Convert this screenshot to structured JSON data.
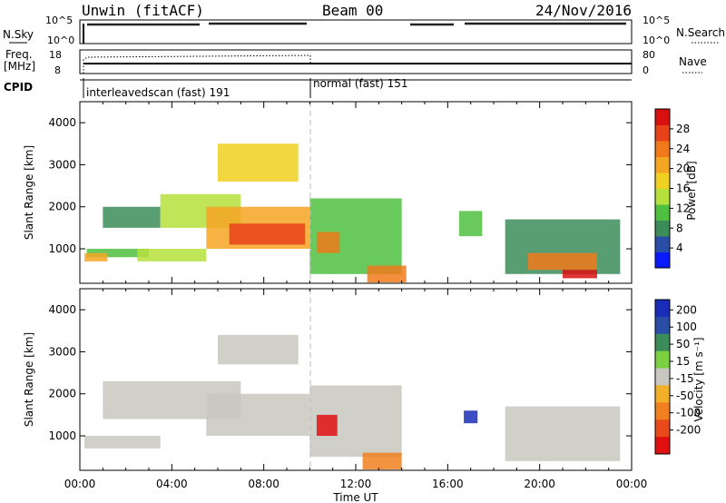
{
  "header": {
    "station": "Unwin (fitACF)",
    "beam": "Beam 00",
    "date": "24/Nov/2016"
  },
  "strip_nsky": {
    "left_label": "N.Sky",
    "right_label": "N.Search",
    "left_ticks": [
      "10^5",
      "10^0"
    ],
    "right_ticks": [
      "10^5",
      "10^0"
    ]
  },
  "strip_freq": {
    "left_label_1": "Freq.",
    "left_label_2": "[MHz]",
    "right_label": "Nave",
    "left_ticks": [
      "18",
      "8"
    ],
    "right_ticks": [
      "80",
      "0"
    ]
  },
  "strip_cpid": {
    "label": "CPID",
    "segment_1": "interleavedscan (fast) 191",
    "segment_2": "normal (fast) 151"
  },
  "axes": {
    "ylabel": "Slant Range [km]",
    "xlabel": "Time UT",
    "y_ticks": [
      "1000",
      "2000",
      "3000",
      "4000"
    ],
    "x_ticks": [
      "00:00",
      "04:00",
      "08:00",
      "12:00",
      "16:00",
      "20:00",
      "00:00"
    ]
  },
  "power_scale": {
    "label": "Power [dB]",
    "ticks": [
      "4",
      "8",
      "12",
      "16",
      "20",
      "24",
      "28"
    ],
    "colors": [
      "#0a1aff",
      "#2a4ea8",
      "#3c8c5a",
      "#4fbf3f",
      "#b6e03c",
      "#f0d020",
      "#f5a623",
      "#f07a1a",
      "#e8421a",
      "#d81010"
    ]
  },
  "velocity_scale": {
    "label": "Velocity [m s⁻¹]",
    "ticks": [
      "200",
      "100",
      "50",
      "15",
      "-15",
      "-50",
      "-100",
      "-200"
    ],
    "colors": [
      "#1a2db8",
      "#2a4ea8",
      "#3c8c5a",
      "#7ad040",
      "#c8c8c0",
      "#f0b028",
      "#f08020",
      "#e84a1a",
      "#e01010"
    ]
  },
  "chart_data": [
    {
      "type": "heatmap",
      "title": "Power",
      "xlabel": "Time UT",
      "ylabel": "Slant Range [km]",
      "xlim": [
        0,
        24
      ],
      "ylim": [
        180,
        4500
      ],
      "colorbar": {
        "label": "Power [dB]",
        "range": [
          0,
          32
        ]
      },
      "regions": [
        {
          "t0": 0.3,
          "t1": 3.0,
          "r0": 800,
          "r1": 1000,
          "value": 10
        },
        {
          "t0": 0.2,
          "t1": 1.2,
          "r0": 700,
          "r1": 900,
          "value": 22
        },
        {
          "t0": 1.0,
          "t1": 3.5,
          "r0": 1500,
          "r1": 2000,
          "value": 8
        },
        {
          "t0": 2.5,
          "t1": 5.5,
          "r0": 700,
          "r1": 1000,
          "value": 14
        },
        {
          "t0": 3.5,
          "t1": 7.0,
          "r0": 1500,
          "r1": 2300,
          "value": 13
        },
        {
          "t0": 5.5,
          "t1": 10.0,
          "r0": 1000,
          "r1": 2000,
          "value": 22
        },
        {
          "t0": 6.5,
          "t1": 9.8,
          "r0": 1100,
          "r1": 1600,
          "value": 28
        },
        {
          "t0": 6.0,
          "t1": 9.5,
          "r0": 2600,
          "r1": 3500,
          "value": 17
        },
        {
          "t0": 10.0,
          "t1": 14.0,
          "r0": 400,
          "r1": 2200,
          "value": 11
        },
        {
          "t0": 10.3,
          "t1": 11.3,
          "r0": 900,
          "r1": 1400,
          "value": 24
        },
        {
          "t0": 12.5,
          "t1": 14.2,
          "r0": 200,
          "r1": 600,
          "value": 25
        },
        {
          "t0": 16.5,
          "t1": 17.5,
          "r0": 1300,
          "r1": 1900,
          "value": 12
        },
        {
          "t0": 18.5,
          "t1": 23.5,
          "r0": 400,
          "r1": 1700,
          "value": 9
        },
        {
          "t0": 19.5,
          "t1": 22.5,
          "r0": 500,
          "r1": 900,
          "value": 23
        },
        {
          "t0": 21.0,
          "t1": 22.5,
          "r0": 300,
          "r1": 500,
          "value": 29
        }
      ]
    },
    {
      "type": "heatmap",
      "title": "Velocity",
      "xlabel": "Time UT",
      "ylabel": "Slant Range [km]",
      "xlim": [
        0,
        24
      ],
      "ylim": [
        180,
        4500
      ],
      "colorbar": {
        "label": "Velocity [m s⁻¹]",
        "range": [
          -250,
          250
        ]
      },
      "regions": [
        {
          "t0": 0.2,
          "t1": 3.5,
          "r0": 700,
          "r1": 1000,
          "value": 0
        },
        {
          "t0": 1.0,
          "t1": 7.0,
          "r0": 1400,
          "r1": 2300,
          "value": 0
        },
        {
          "t0": 5.5,
          "t1": 10.0,
          "r0": 1000,
          "r1": 2000,
          "value": 0
        },
        {
          "t0": 6.0,
          "t1": 9.5,
          "r0": 2700,
          "r1": 3400,
          "value": 0
        },
        {
          "t0": 10.0,
          "t1": 14.0,
          "r0": 500,
          "r1": 2200,
          "value": 0
        },
        {
          "t0": 10.3,
          "t1": 11.2,
          "r0": 1000,
          "r1": 1500,
          "value": -220
        },
        {
          "t0": 12.3,
          "t1": 14.0,
          "r0": 200,
          "r1": 600,
          "value": -60
        },
        {
          "t0": 16.7,
          "t1": 17.3,
          "r0": 1300,
          "r1": 1600,
          "value": 220
        },
        {
          "t0": 18.5,
          "t1": 23.5,
          "r0": 400,
          "r1": 1700,
          "value": 0
        }
      ]
    }
  ]
}
